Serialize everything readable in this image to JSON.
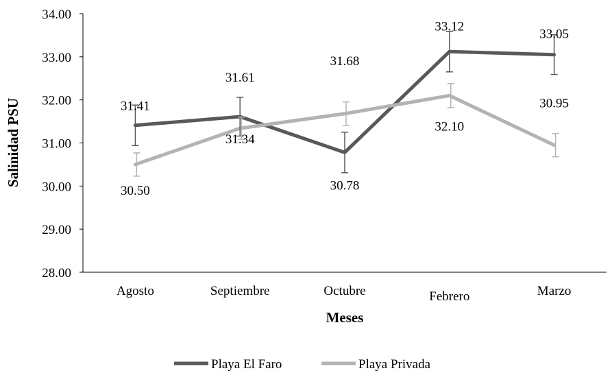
{
  "chart_data": {
    "type": "line",
    "title": "",
    "xlabel": "Meses",
    "ylabel": "Salinidad PSU",
    "ylim": [
      28,
      34
    ],
    "y_ticks": [
      "28.00",
      "29.00",
      "30.00",
      "31.00",
      "32.00",
      "33.00",
      "34.00"
    ],
    "categories": [
      "Agosto",
      "Septiembre",
      "Octubre",
      "Febrero",
      "Marzo"
    ],
    "grid": false,
    "legend_position": "bottom",
    "series": [
      {
        "name": "Playa El Faro",
        "color": "#595959",
        "values": [
          31.41,
          31.61,
          30.78,
          33.12,
          33.05
        ],
        "labels": [
          "31.41",
          "31.61",
          "30.78",
          "33.12",
          "33.05"
        ],
        "error": [
          0.47,
          0.45,
          0.47,
          0.47,
          0.46
        ]
      },
      {
        "name": "Playa Privada",
        "color": "#b3b3b3",
        "values": [
          30.5,
          31.34,
          31.68,
          32.1,
          30.95
        ],
        "labels": [
          "30.50",
          "31.34",
          "31.68",
          "32.10",
          "30.95"
        ],
        "error": [
          0.27,
          0.26,
          0.27,
          0.28,
          0.27
        ]
      }
    ]
  }
}
